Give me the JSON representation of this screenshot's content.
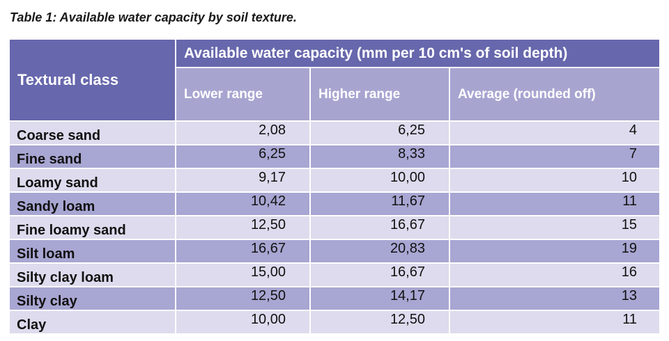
{
  "caption": "Table 1: Available water capacity by soil texture.",
  "table": {
    "textural_header": "Textural class",
    "awc_header": "Available water capacity (mm per 10 cm's of soil depth)",
    "sub_headers": [
      "Lower range",
      "Higher range",
      "Average (rounded off)"
    ],
    "rows": [
      {
        "label": "Coarse sand",
        "lower": "2,08",
        "higher": "6,25",
        "average": "4"
      },
      {
        "label": "Fine sand",
        "lower": "6,25",
        "higher": "8,33",
        "average": "7"
      },
      {
        "label": "Loamy sand",
        "lower": "9,17",
        "higher": "10,00",
        "average": "10"
      },
      {
        "label": "Sandy loam",
        "lower": "10,42",
        "higher": "11,67",
        "average": "11"
      },
      {
        "label": "Fine loamy sand",
        "lower": "12,50",
        "higher": "16,67",
        "average": "15"
      },
      {
        "label": "Silt loam",
        "lower": "16,67",
        "higher": "20,83",
        "average": "19"
      },
      {
        "label": "Silty clay loam",
        "lower": "15,00",
        "higher": "16,67",
        "average": "16"
      },
      {
        "label": "Silty clay",
        "lower": "12,50",
        "higher": "14,17",
        "average": "13"
      },
      {
        "label": "Clay",
        "lower": "10,00",
        "higher": "12,50",
        "average": "11"
      }
    ]
  },
  "colors": {
    "header_dark": "#6767ad",
    "header_light": "#a7a5d0",
    "row_light": "#dddbed",
    "row_dark": "#a8a6d2"
  }
}
